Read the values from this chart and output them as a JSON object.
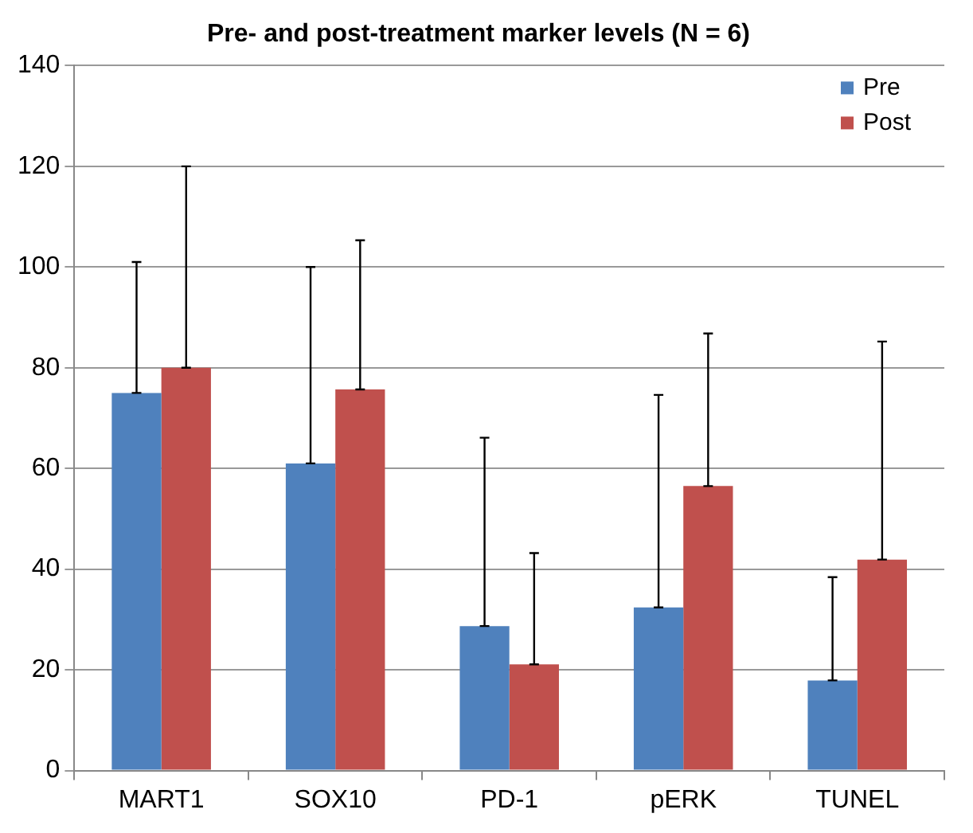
{
  "chart_data": {
    "type": "bar",
    "title": "Pre- and post-treatment marker levels (N = 6)",
    "categories": [
      "MART1",
      "SOX10",
      "PD-1",
      "pERK",
      "TUNEL"
    ],
    "series": [
      {
        "name": "Pre",
        "color": "#4f81bd",
        "values": [
          75,
          61,
          28.7,
          32.4,
          17.9
        ],
        "errors": [
          [
            75,
            101
          ],
          [
            61,
            100
          ],
          [
            28.7,
            66.1
          ],
          [
            32.4,
            74.6
          ],
          [
            17.9,
            38.4
          ]
        ]
      },
      {
        "name": "Post",
        "color": "#c0504d",
        "values": [
          80,
          75.7,
          21.1,
          56.5,
          41.9
        ],
        "errors": [
          [
            80,
            120
          ],
          [
            75.7,
            105.3
          ],
          [
            21.1,
            43.2
          ],
          [
            56.5,
            86.8
          ],
          [
            41.9,
            85.2
          ]
        ]
      }
    ],
    "ylim": [
      0,
      140
    ],
    "yticks": [
      0,
      20,
      40,
      60,
      80,
      100,
      120,
      140
    ],
    "grid": "y",
    "legend": "top right"
  }
}
